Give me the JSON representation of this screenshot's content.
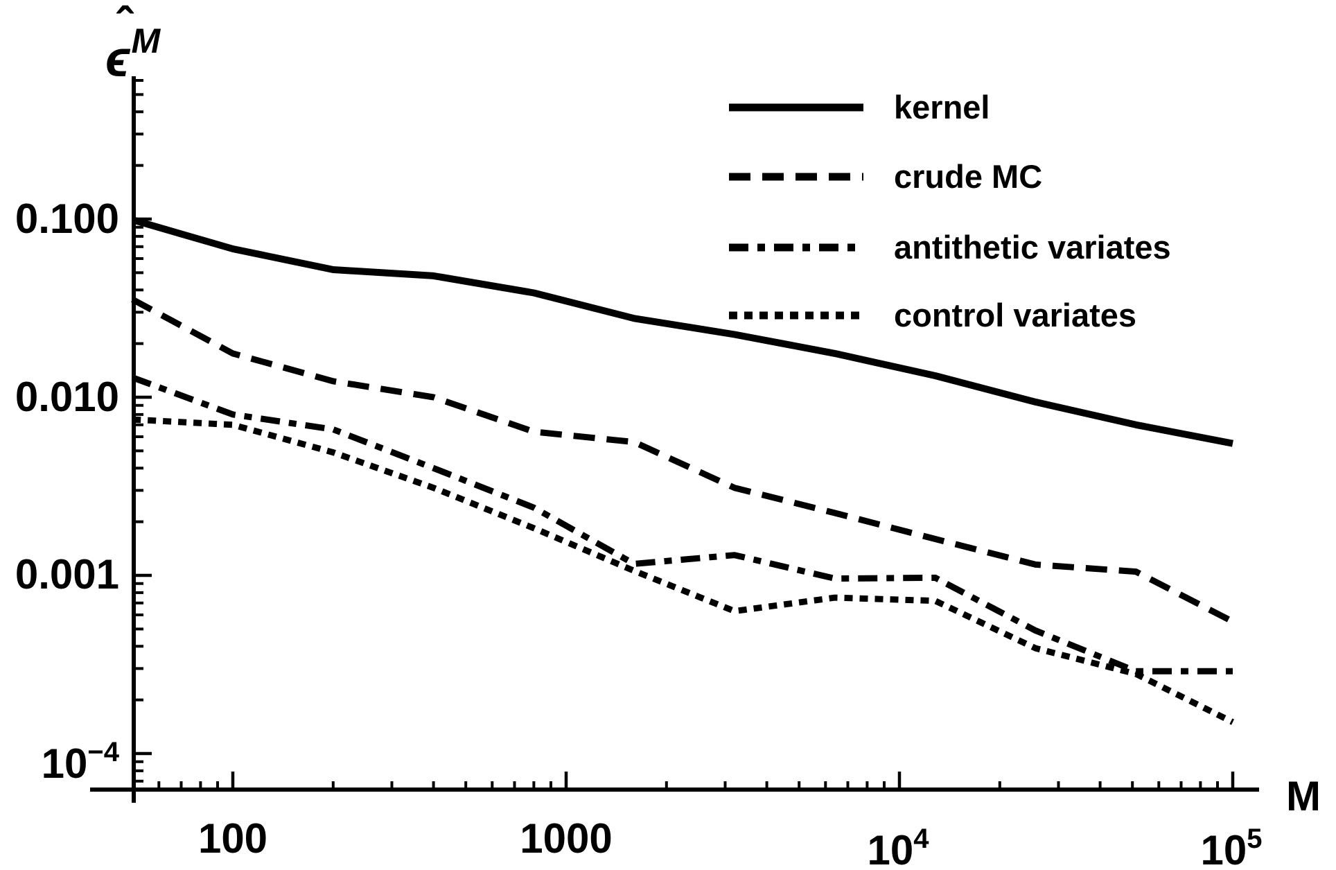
{
  "figure": {
    "background": "#ffffff",
    "ink": "#000000"
  },
  "y_axis": {
    "label": {
      "base": "ϵ",
      "hat": "ˆ",
      "sup": "M"
    },
    "tick_labels": [
      {
        "text": "0.100",
        "value": 0.1
      },
      {
        "text": "0.010",
        "value": 0.01
      },
      {
        "text": "0.001",
        "value": 0.001
      },
      {
        "base": "10",
        "exp": "−4",
        "value": 0.0001
      }
    ]
  },
  "x_axis": {
    "label": "M",
    "tick_labels": [
      {
        "text": "100",
        "value": 100
      },
      {
        "text": "1000",
        "value": 1000
      },
      {
        "base": "10",
        "exp": "4",
        "value": 10000
      },
      {
        "base": "10",
        "exp": "5",
        "value": 100000
      }
    ]
  },
  "legend": [
    {
      "label": "kernel",
      "style": "solid"
    },
    {
      "label": "crude MC",
      "style": "dashed"
    },
    {
      "label": "antithetic variates",
      "style": "dashdot"
    },
    {
      "label": "control variates",
      "style": "dotted"
    }
  ],
  "chart_data": {
    "type": "line",
    "title": "",
    "xlabel": "M",
    "ylabel": "ϵ̂^M",
    "x_scale": "log",
    "y_scale": "log",
    "xlim": [
      50,
      130000
    ],
    "ylim": [
      5e-05,
      0.6
    ],
    "grid": false,
    "legend_position": "top-right-inside",
    "x": [
      50,
      100,
      200,
      400,
      800,
      1600,
      3200,
      6400,
      12800,
      25600,
      51200,
      100000
    ],
    "x_major_ticks": [
      100,
      1000,
      10000,
      100000
    ],
    "y_major_ticks": [
      0.1,
      0.01,
      0.001,
      0.0001
    ],
    "series": [
      {
        "name": "kernel",
        "line_style": "solid",
        "values": [
          0.099,
          0.068,
          0.052,
          0.048,
          0.0385,
          0.0277,
          0.0225,
          0.0176,
          0.0132,
          0.0094,
          0.007,
          0.0055
        ]
      },
      {
        "name": "crude MC",
        "line_style": "dashed",
        "values": [
          0.0354,
          0.0176,
          0.0123,
          0.01,
          0.0064,
          0.0056,
          0.0031,
          0.00224,
          0.0016,
          0.00115,
          0.00105,
          0.00055
        ]
      },
      {
        "name": "antithetic variates",
        "line_style": "dashdot",
        "values": [
          0.0129,
          0.008,
          0.0066,
          0.004,
          0.0024,
          0.00116,
          0.0013,
          0.00096,
          0.00097,
          0.00049,
          0.00029,
          0.00029
        ]
      },
      {
        "name": "control variates",
        "line_style": "dotted",
        "values": [
          0.0075,
          0.007,
          0.0049,
          0.0031,
          0.00184,
          0.00106,
          0.00063,
          0.00075,
          0.00072,
          0.00039,
          0.00028,
          0.00015
        ]
      }
    ]
  }
}
